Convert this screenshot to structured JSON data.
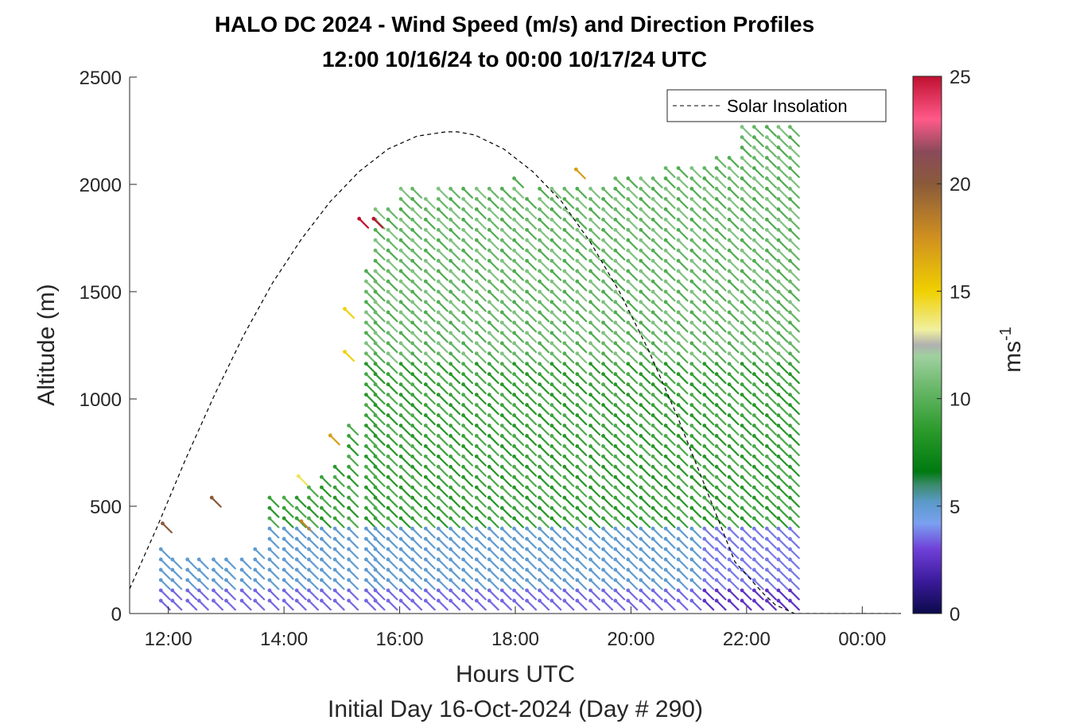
{
  "chart_data": {
    "type": "wind-barb-profile",
    "title_line1": "HALO DC 2024 - Wind Speed (m/s) and Direction Profiles",
    "title_line2": "12:00 10/16/24 to 00:00 10/17/24  UTC",
    "xlabel": "Hours UTC",
    "xlabel2": "Initial Day 16-Oct-2024 (Day # 290)",
    "ylabel": "Altitude (m)",
    "xlim": [
      11.33,
      24.67
    ],
    "ylim": [
      0,
      2500
    ],
    "xticks": [
      12,
      14,
      16,
      18,
      20,
      22,
      24
    ],
    "xtick_labels": [
      "12:00",
      "14:00",
      "16:00",
      "18:00",
      "20:00",
      "22:00",
      "00:00"
    ],
    "yticks": [
      0,
      500,
      1000,
      1500,
      2000,
      2500
    ],
    "ytick_labels": [
      "0",
      "500",
      "1000",
      "1500",
      "2000",
      "2500"
    ],
    "legend": {
      "entry": "Solar Insolation",
      "location": "top-right"
    },
    "colorbar": {
      "label": "ms",
      "label_exponent": "-1",
      "range": [
        0,
        25
      ],
      "ticks": [
        0,
        5,
        10,
        15,
        20,
        25
      ],
      "tick_labels": [
        "0",
        "5",
        "10",
        "15",
        "20",
        "25"
      ],
      "colors": [
        {
          "v": 0,
          "c": "#0a0a4a"
        },
        {
          "v": 1.5,
          "c": "#3a1a9a"
        },
        {
          "v": 3,
          "c": "#7040d8"
        },
        {
          "v": 4.2,
          "c": "#7aa0f0"
        },
        {
          "v": 5.2,
          "c": "#5a9ac8"
        },
        {
          "v": 6,
          "c": "#3a8a6a"
        },
        {
          "v": 6.6,
          "c": "#007a10"
        },
        {
          "v": 8.5,
          "c": "#2a9a2a"
        },
        {
          "v": 10.5,
          "c": "#6ab86a"
        },
        {
          "v": 12,
          "c": "#a0d0a0"
        },
        {
          "v": 12.5,
          "c": "#b0b0b0"
        },
        {
          "v": 13.2,
          "c": "#f0f0a0"
        },
        {
          "v": 15,
          "c": "#f0d000"
        },
        {
          "v": 17.5,
          "c": "#d09020"
        },
        {
          "v": 20,
          "c": "#8a5a3a"
        },
        {
          "v": 21.5,
          "c": "#8a4a5a"
        },
        {
          "v": 23,
          "c": "#ff5a8a"
        },
        {
          "v": 25,
          "c": "#c01030"
        }
      ]
    },
    "solar_insolation": {
      "style": "dashed",
      "color": "#000000",
      "x": [
        11.33,
        11.8,
        12.3,
        12.8,
        13.3,
        13.8,
        14.3,
        14.8,
        15.3,
        15.8,
        16.3,
        16.8,
        17.0,
        17.3,
        17.8,
        18.3,
        18.8,
        19.3,
        19.8,
        20.3,
        20.8,
        21.3,
        21.8,
        22.3,
        22.5,
        22.83,
        23.0,
        24.0,
        24.67
      ],
      "y": [
        115,
        400,
        720,
        1020,
        1295,
        1540,
        1745,
        1920,
        2060,
        2165,
        2225,
        2245,
        2245,
        2230,
        2165,
        2060,
        1920,
        1730,
        1500,
        1230,
        920,
        580,
        240,
        90,
        40,
        0,
        0,
        0,
        0
      ]
    },
    "barb_columns": {
      "x": [
        11.87,
        12.07,
        12.33,
        12.53,
        12.78,
        13.0,
        13.27,
        13.5,
        13.75,
        14.0,
        14.22,
        14.43,
        14.65,
        14.88,
        15.12,
        15.42,
        15.58,
        15.8,
        16.02,
        16.22,
        16.45,
        16.67,
        16.88,
        17.1,
        17.33,
        17.55,
        17.77,
        17.98,
        18.2,
        18.42,
        18.63,
        18.85,
        19.07,
        19.3,
        19.52,
        19.73,
        19.95,
        20.17,
        20.38,
        20.6,
        20.82,
        21.05,
        21.27,
        21.48,
        21.7,
        21.92,
        22.13,
        22.35,
        22.55,
        22.75
      ],
      "top_altitude": [
        300,
        280,
        290,
        290,
        290,
        280,
        290,
        310,
        560,
        570,
        580,
        620,
        650,
        690,
        900,
        1620,
        1900,
        1930,
        2000,
        1990,
        1950,
        1990,
        1990,
        1980,
        1990,
        1990,
        2020,
        2060,
        1950,
        1990,
        1990,
        1990,
        1990,
        2010,
        2010,
        2060,
        2050,
        2060,
        2050,
        2080,
        2080,
        2080,
        2090,
        2160,
        2170,
        2280,
        2290,
        2300,
        2300,
        2300
      ],
      "bottom_altitude": [
        60,
        60,
        60,
        60,
        60,
        60,
        60,
        60,
        60,
        60,
        60,
        60,
        60,
        60,
        60,
        60,
        60,
        60,
        60,
        60,
        60,
        60,
        60,
        60,
        60,
        60,
        60,
        60,
        60,
        60,
        60,
        60,
        60,
        60,
        60,
        60,
        60,
        60,
        60,
        60,
        60,
        60,
        60,
        60,
        60,
        60,
        60,
        60,
        60,
        60
      ],
      "spacing_m": 48,
      "direction_from_deg": 315,
      "speed_ms": {
        "surface": 3.5,
        "lower_boundary_layer": 5.0,
        "mid_layer": 8.2,
        "upper_layer": 9.5,
        "late_day_lower": 2.5
      }
    },
    "isolated_barbs": [
      {
        "x": 11.9,
        "alt": 420,
        "speed_ms": 20
      },
      {
        "x": 12.75,
        "alt": 540,
        "speed_ms": 20
      },
      {
        "x": 14.25,
        "alt": 640,
        "speed_ms": 14
      },
      {
        "x": 14.3,
        "alt": 430,
        "speed_ms": 18
      },
      {
        "x": 14.8,
        "alt": 830,
        "speed_ms": 17
      },
      {
        "x": 15.05,
        "alt": 1420,
        "speed_ms": 15
      },
      {
        "x": 15.05,
        "alt": 1220,
        "speed_ms": 15
      },
      {
        "x": 15.3,
        "alt": 1840,
        "speed_ms": 25
      },
      {
        "x": 15.55,
        "alt": 1840,
        "speed_ms": 25
      },
      {
        "x": 19.05,
        "alt": 2070,
        "speed_ms": 17
      }
    ]
  }
}
